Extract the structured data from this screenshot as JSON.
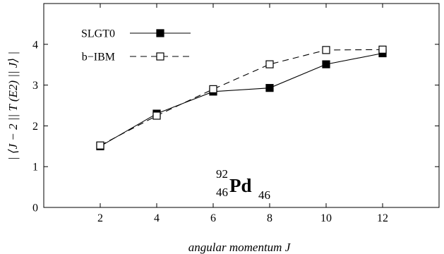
{
  "chart_data": {
    "type": "line",
    "xlabel": "angular momentum J",
    "ylabel": "| ⟨J − 2 || T (E2) || J⟩ |",
    "xlim": [
      0,
      14
    ],
    "ylim": [
      0,
      5
    ],
    "x_ticks": [
      "2",
      "4",
      "6",
      "8",
      "10",
      "12"
    ],
    "y_ticks": [
      "0",
      "1",
      "2",
      "3",
      "4"
    ],
    "legend_placement": "top-left",
    "grid": false,
    "annotation": {
      "mass_number": "92",
      "atomic_number": "46",
      "symbol": "Pd",
      "neutron_number": "46"
    },
    "series": [
      {
        "name": "SLGT0",
        "x": [
          2,
          4,
          6,
          8,
          10,
          12
        ],
        "y": [
          1.5,
          2.3,
          2.84,
          2.93,
          3.51,
          3.78
        ],
        "marker": "filled-square",
        "line": "solid",
        "color": "#000000"
      },
      {
        "name": "b−IBM",
        "x": [
          2,
          4,
          6,
          8,
          10,
          12
        ],
        "y": [
          1.52,
          2.25,
          2.9,
          3.51,
          3.86,
          3.87
        ],
        "marker": "open-square",
        "line": "dashed",
        "color": "#000000"
      }
    ]
  }
}
